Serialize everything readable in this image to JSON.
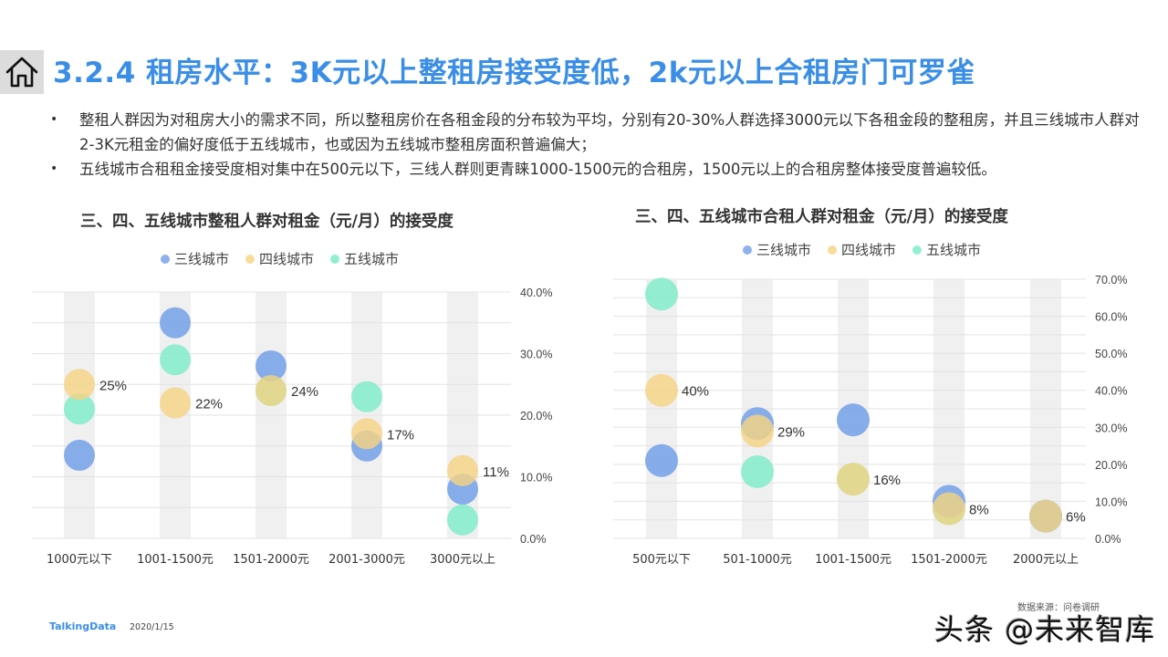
{
  "header": {
    "home_icon": "home-icon",
    "title": "3.2.4 租房水平：3K元以上整租房接受度低，2k元以上合租房门可罗雀"
  },
  "bullets": [
    "整租人群因为对租房大小的需求不同，所以整租房价在各租金段的分布较为平均，分别有20-30%人群选择3000元以下各租金段的整租房，并且三线城市人群对2-3K元租金的偏好度低于五线城市，也或因为五线城市整租房面积普遍偏大；",
    "五线城市合租租金接受度相对集中在500元以下，三线人群则更青睐1000-1500元的合租房，1500元以上的合租房整体接受度普遍较低。"
  ],
  "colors": {
    "tier3": "#6f9ce8",
    "tier4": "#f5d384",
    "tier5": "#7eecc9",
    "title": "#3a8ee6",
    "band": "#f0f0f0",
    "grid": "#e3e3e3"
  },
  "legend": [
    "三线城市",
    "四线城市",
    "五线城市"
  ],
  "chart_data": [
    {
      "type": "scatter",
      "title": "三、四、五线城市整租人群对租金（元/月）的接受度",
      "categories": [
        "1000元以下",
        "1001-1500元",
        "1501-2000元",
        "2001-3000元",
        "3000元以上"
      ],
      "series": [
        {
          "name": "三线城市",
          "values": [
            13.5,
            35,
            28,
            15,
            8
          ]
        },
        {
          "name": "四线城市",
          "values": [
            25,
            22,
            24,
            17,
            11
          ]
        },
        {
          "name": "五线城市",
          "values": [
            21,
            29,
            24,
            23,
            3
          ]
        }
      ],
      "data_labels": [
        "25%",
        "22%",
        "24%",
        "17%",
        "11%"
      ],
      "yticks": [
        "0.0%",
        "10.0%",
        "20.0%",
        "30.0%",
        "40.0%"
      ],
      "ylim": [
        0,
        40
      ],
      "y_axis_position": "right",
      "grid": true,
      "legend_position": "top"
    },
    {
      "type": "scatter",
      "title": "三、四、五线城市合租人群对租金（元/月）的接受度",
      "categories": [
        "500元以下",
        "501-1000元",
        "1001-1500元",
        "1501-2000元",
        "2000元以上"
      ],
      "series": [
        {
          "name": "三线城市",
          "values": [
            21,
            31,
            32,
            10,
            6
          ]
        },
        {
          "name": "四线城市",
          "values": [
            40,
            29,
            16,
            8,
            6
          ]
        },
        {
          "name": "五线城市",
          "values": [
            66,
            18,
            16,
            8,
            6
          ]
        }
      ],
      "data_labels": [
        "40%",
        "29%",
        "16%",
        "8%",
        "6%"
      ],
      "yticks": [
        "0.0%",
        "10.0%",
        "20.0%",
        "30.0%",
        "40.0%",
        "50.0%",
        "60.0%",
        "70.0%"
      ],
      "ylim": [
        0,
        70
      ],
      "y_axis_position": "right",
      "grid": true,
      "legend_position": "top"
    }
  ],
  "footer": {
    "logo": "TalkingData",
    "date": "2020/1/15",
    "source": "数据来源：问卷调研",
    "watermark": "头条 @未来智库"
  }
}
